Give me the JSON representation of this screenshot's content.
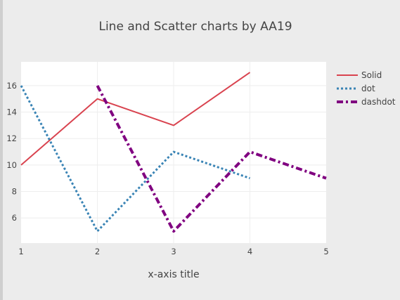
{
  "chart_data": {
    "type": "line",
    "title": "Line and Scatter charts by AA19",
    "xlabel": "x-axis title",
    "ylabel": "",
    "xlim": [
      1,
      5
    ],
    "ylim": [
      4.1,
      17.8
    ],
    "xticks": [
      "1",
      "2",
      "3",
      "4",
      "5"
    ],
    "yticks": [
      "6",
      "8",
      "10",
      "12",
      "14",
      "16"
    ],
    "grid": true,
    "legend_position": "top-right",
    "series": [
      {
        "name": "Solid",
        "x": [
          1,
          2,
          3,
          4
        ],
        "y": [
          10,
          15,
          13,
          17
        ],
        "color": "#d9434f",
        "dash": "solid"
      },
      {
        "name": "dot",
        "x": [
          1,
          2,
          3,
          4
        ],
        "y": [
          16,
          5,
          11,
          9
        ],
        "color": "#3a84b5",
        "dash": "dot"
      },
      {
        "name": "dashdot",
        "x": [
          2,
          3,
          4,
          5
        ],
        "y": [
          16,
          5,
          11,
          9
        ],
        "color": "#800080",
        "dash": "dashdot"
      }
    ]
  }
}
